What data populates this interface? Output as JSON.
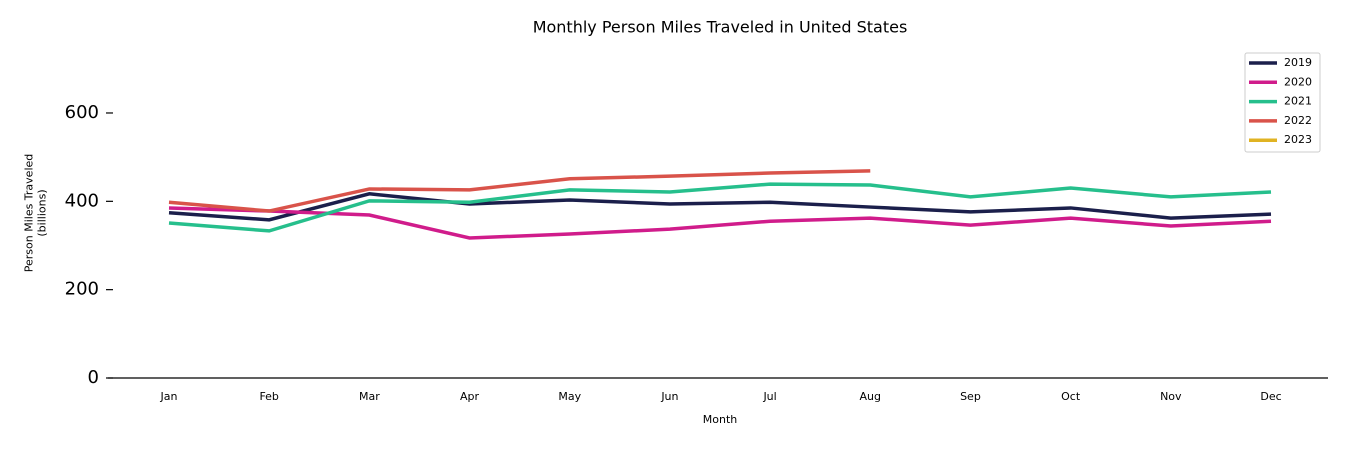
{
  "chart_data": {
    "type": "line",
    "title": "Monthly Person Miles Traveled in United States",
    "xlabel": "Month",
    "ylabel": "Person Miles Traveled\n(billions)",
    "categories": [
      "Jan",
      "Feb",
      "Mar",
      "Apr",
      "May",
      "Jun",
      "Jul",
      "Aug",
      "Sep",
      "Oct",
      "Nov",
      "Dec"
    ],
    "series": [
      {
        "name": "2019",
        "color": "#1b1f4b",
        "values": [
          374,
          358,
          417,
          394,
          403,
          394,
          398,
          387,
          376,
          385,
          362,
          371
        ]
      },
      {
        "name": "2020",
        "color": "#d01c8b",
        "values": [
          385,
          378,
          369,
          317,
          326,
          337,
          355,
          362,
          346,
          362,
          344,
          355
        ]
      },
      {
        "name": "2021",
        "color": "#26bf8c",
        "values": [
          351,
          333,
          401,
          398,
          426,
          421,
          439,
          437,
          410,
          430,
          410,
          421
        ]
      },
      {
        "name": "2022",
        "color": "#d9534a",
        "values": [
          398,
          378,
          428,
          426,
          451,
          457,
          464,
          469,
          null,
          null,
          null,
          null
        ]
      },
      {
        "name": "2023",
        "color": "#e0b323",
        "values": [
          null,
          null,
          null,
          null,
          null,
          null,
          null,
          null,
          null,
          null,
          null,
          null
        ]
      }
    ],
    "ylim": [
      0,
      750
    ],
    "yticks": [
      0,
      200,
      400,
      600
    ],
    "legend": "upper right"
  }
}
